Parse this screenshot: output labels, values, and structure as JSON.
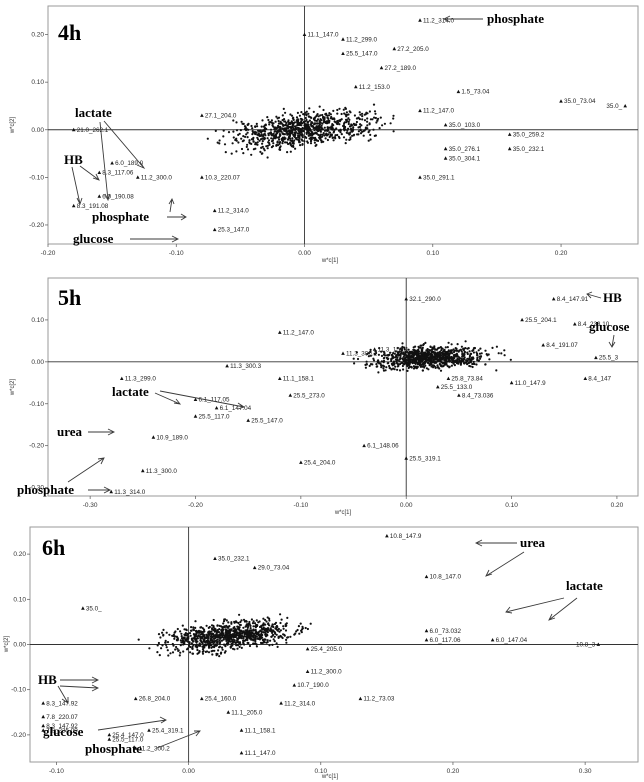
{
  "figure": {
    "description_panels": [
      "4h",
      "5h",
      "6h"
    ]
  },
  "chart_data": [
    {
      "type": "scatter",
      "title": "4h",
      "xlabel": "w*c[1]",
      "ylabel": "w*c[2]",
      "xlim": [
        -0.2,
        0.26
      ],
      "ylim": [
        -0.24,
        0.26
      ],
      "xticks": [
        -0.2,
        -0.1,
        0.0,
        0.1,
        0.2
      ],
      "xtick_labels": [
        "-0.20",
        "-0.10",
        "0.00",
        "0.10",
        "0.20"
      ],
      "yticks": [
        -0.2,
        -0.1,
        0.0,
        0.1,
        0.2
      ],
      "ytick_labels": [
        "-0.20",
        "-0.10",
        "0.00",
        "0.10",
        "0.20"
      ],
      "cloud": {
        "cx": 0.0,
        "cy": 0.0,
        "rx": 0.1,
        "ry": 0.055,
        "rotate_deg": 25
      },
      "points": [
        {
          "x": 0.09,
          "y": 0.23,
          "label": "11.2_314.0"
        },
        {
          "x": 0.0,
          "y": 0.2,
          "label": "11.1_147.0"
        },
        {
          "x": 0.03,
          "y": 0.19,
          "label": "11.2_299.0"
        },
        {
          "x": 0.07,
          "y": 0.17,
          "label": "27.2_205.0"
        },
        {
          "x": 0.03,
          "y": 0.16,
          "label": "25.5_147.0"
        },
        {
          "x": 0.06,
          "y": 0.13,
          "label": "27.2_189.0"
        },
        {
          "x": 0.04,
          "y": 0.09,
          "label": "11.2_153.0"
        },
        {
          "x": 0.09,
          "y": 0.04,
          "label": "11.2_147.0"
        },
        {
          "x": 0.12,
          "y": 0.08,
          "label": "1.5_73.04"
        },
        {
          "x": -0.08,
          "y": 0.03,
          "label": "27.1_204.0"
        },
        {
          "x": 0.2,
          "y": 0.06,
          "label": "35.0_73.04"
        },
        {
          "x": 0.25,
          "y": 0.05,
          "label": "35.0_"
        },
        {
          "x": 0.11,
          "y": 0.01,
          "label": "35.0_103.0"
        },
        {
          "x": 0.16,
          "y": -0.01,
          "label": "35.0_259.2"
        },
        {
          "x": 0.11,
          "y": -0.04,
          "label": "35.0_276.1"
        },
        {
          "x": 0.16,
          "y": -0.04,
          "label": "35.0_232.1"
        },
        {
          "x": 0.11,
          "y": -0.06,
          "label": "35.0_304.1"
        },
        {
          "x": 0.09,
          "y": -0.1,
          "label": "35.0_291.1"
        },
        {
          "x": -0.18,
          "y": 0.0,
          "label": "21.0_262.1"
        },
        {
          "x": -0.15,
          "y": -0.07,
          "label": "6.0_189.0"
        },
        {
          "x": -0.16,
          "y": -0.09,
          "label": "8.3_117.06"
        },
        {
          "x": -0.13,
          "y": -0.1,
          "label": "11.2_300.0"
        },
        {
          "x": -0.16,
          "y": -0.14,
          "label": "6.0_190.08"
        },
        {
          "x": -0.18,
          "y": -0.16,
          "label": "8.3_191.08"
        },
        {
          "x": -0.08,
          "y": -0.1,
          "label": "10.3_220.07"
        },
        {
          "x": -0.07,
          "y": -0.17,
          "label": "11.2_314.0"
        },
        {
          "x": -0.07,
          "y": -0.21,
          "label": "25.3_147.0"
        }
      ]
    },
    {
      "type": "scatter",
      "title": "5h",
      "xlabel": "w*c[1]",
      "ylabel": "w*c[2]",
      "xlim": [
        -0.34,
        0.22
      ],
      "ylim": [
        -0.32,
        0.2
      ],
      "xticks": [
        -0.3,
        -0.2,
        -0.1,
        0.0,
        0.1,
        0.2
      ],
      "xtick_labels": [
        "-0.30",
        "-0.20",
        "-0.10",
        "0.00",
        "0.10",
        "0.20"
      ],
      "yticks": [
        -0.3,
        -0.2,
        -0.1,
        0.0,
        0.1
      ],
      "ytick_labels": [
        "-0.30",
        "-0.20",
        "-0.10",
        "0.00",
        "0.10"
      ],
      "cloud": {
        "cx": 0.02,
        "cy": 0.01,
        "rx": 0.09,
        "ry": 0.045,
        "rotate_deg": 8
      },
      "points": [
        {
          "x": 0.14,
          "y": 0.15,
          "label": "8.4_147.91"
        },
        {
          "x": 0.11,
          "y": 0.1,
          "label": "25.5_204.1"
        },
        {
          "x": 0.16,
          "y": 0.09,
          "label": "8.4_233.10"
        },
        {
          "x": 0.13,
          "y": 0.04,
          "label": "8.4_191.07"
        },
        {
          "x": 0.18,
          "y": 0.01,
          "label": "25.5_3"
        },
        {
          "x": 0.17,
          "y": -0.04,
          "label": "8.4_147"
        },
        {
          "x": 0.1,
          "y": -0.05,
          "label": "11.0_147.9"
        },
        {
          "x": 0.05,
          "y": -0.08,
          "label": "8.4_73.036"
        },
        {
          "x": 0.03,
          "y": -0.06,
          "label": "25.5_133.0"
        },
        {
          "x": 0.04,
          "y": -0.04,
          "label": "25.8_73.84"
        },
        {
          "x": 0.0,
          "y": 0.15,
          "label": "32.1_290.0"
        },
        {
          "x": -0.12,
          "y": 0.07,
          "label": "11.2_147.0"
        },
        {
          "x": -0.03,
          "y": 0.03,
          "label": "11.3_153.1"
        },
        {
          "x": -0.06,
          "y": 0.02,
          "label": "11.3_300.2"
        },
        {
          "x": -0.17,
          "y": -0.01,
          "label": "11.3_300.3"
        },
        {
          "x": -0.12,
          "y": -0.04,
          "label": "11.1_158.1"
        },
        {
          "x": -0.27,
          "y": -0.04,
          "label": "11.3_299.0"
        },
        {
          "x": -0.18,
          "y": -0.11,
          "label": "6.1_147.04"
        },
        {
          "x": -0.2,
          "y": -0.13,
          "label": "25.5_117.0"
        },
        {
          "x": -0.15,
          "y": -0.14,
          "label": "25.5_147.0"
        },
        {
          "x": -0.2,
          "y": -0.09,
          "label": "6.1_117.05"
        },
        {
          "x": -0.24,
          "y": -0.18,
          "label": "10.9_189.0"
        },
        {
          "x": -0.25,
          "y": -0.26,
          "label": "11.3_300.0"
        },
        {
          "x": -0.28,
          "y": -0.31,
          "label": "11.3_314.0"
        },
        {
          "x": -0.1,
          "y": -0.24,
          "label": "25.4_204.0"
        },
        {
          "x": -0.04,
          "y": -0.2,
          "label": "6.1_148.06"
        },
        {
          "x": 0.0,
          "y": -0.23,
          "label": "25.5_319.1"
        },
        {
          "x": -0.11,
          "y": -0.08,
          "label": "25.5_273.0"
        }
      ]
    },
    {
      "type": "scatter",
      "title": "6h",
      "xlabel": "w*c[1]",
      "ylabel": "w*c[2]",
      "xlim": [
        -0.12,
        0.34
      ],
      "ylim": [
        -0.26,
        0.26
      ],
      "xticks": [
        -0.1,
        0.0,
        0.1,
        0.2,
        0.3
      ],
      "xtick_labels": [
        "-0.10",
        "0.00",
        "0.10",
        "0.20",
        "0.30"
      ],
      "yticks": [
        -0.2,
        -0.1,
        0.0,
        0.1,
        0.2
      ],
      "ytick_labels": [
        "-0.20",
        "-0.10",
        "0.00",
        "0.10",
        "0.20"
      ],
      "cloud": {
        "cx": 0.03,
        "cy": 0.02,
        "rx": 0.085,
        "ry": 0.05,
        "rotate_deg": 28
      },
      "points": [
        {
          "x": 0.15,
          "y": 0.24,
          "label": "10.8_147.9"
        },
        {
          "x": 0.18,
          "y": 0.15,
          "label": "10.8_147.0"
        },
        {
          "x": 0.18,
          "y": 0.03,
          "label": "6.0_73.032"
        },
        {
          "x": 0.18,
          "y": 0.01,
          "label": "6.0_117.06"
        },
        {
          "x": 0.23,
          "y": 0.01,
          "label": "6.0_147.04"
        },
        {
          "x": 0.31,
          "y": 0.0,
          "label": "10.8_3"
        },
        {
          "x": 0.02,
          "y": 0.19,
          "label": "35.0_232.1"
        },
        {
          "x": 0.05,
          "y": 0.17,
          "label": "29.0_73.04"
        },
        {
          "x": 0.09,
          "y": -0.01,
          "label": "25.4_205.0"
        },
        {
          "x": 0.09,
          "y": -0.06,
          "label": "11.2_300.0"
        },
        {
          "x": 0.08,
          "y": -0.09,
          "label": "10.7_190.0"
        },
        {
          "x": 0.07,
          "y": -0.13,
          "label": "11.2_314.0"
        },
        {
          "x": 0.13,
          "y": -0.12,
          "label": "11.2_73.03"
        },
        {
          "x": 0.03,
          "y": -0.15,
          "label": "11.1_205.0"
        },
        {
          "x": 0.04,
          "y": -0.19,
          "label": "11.1_158.1"
        },
        {
          "x": 0.04,
          "y": -0.24,
          "label": "11.1_147.0"
        },
        {
          "x": 0.01,
          "y": -0.12,
          "label": "25.4_160.0"
        },
        {
          "x": -0.04,
          "y": -0.12,
          "label": "26.8_204.0"
        },
        {
          "x": -0.03,
          "y": -0.19,
          "label": "25.4_319.1"
        },
        {
          "x": -0.06,
          "y": -0.2,
          "label": "25.4_147.0"
        },
        {
          "x": -0.06,
          "y": -0.21,
          "label": "25.5_117.0"
        },
        {
          "x": -0.04,
          "y": -0.23,
          "label": "11.2_300.2"
        },
        {
          "x": -0.08,
          "y": 0.08,
          "label": "35.0_"
        },
        {
          "x": -0.11,
          "y": -0.13,
          "label": "8.3_147.92"
        },
        {
          "x": -0.11,
          "y": -0.16,
          "label": "7.8_220.07"
        },
        {
          "x": -0.11,
          "y": -0.18,
          "label": "8.3_147.92"
        },
        {
          "x": -0.11,
          "y": -0.19,
          "label": "7.8_235.09"
        }
      ]
    }
  ],
  "annotations": {
    "p4": {
      "phosphate_top": "phosphate",
      "lactate": "lactate",
      "hb": "HB",
      "phosphate": "phosphate",
      "glucose": "glucose"
    },
    "p5": {
      "hb": "HB",
      "glucose": "glucose",
      "lactate": "lactate",
      "urea": "urea",
      "phosphate": "phosphate"
    },
    "p6": {
      "urea": "urea",
      "lactate": "lactate",
      "hb": "HB",
      "glucose": "glucose",
      "phosphate": "phosphate"
    }
  }
}
